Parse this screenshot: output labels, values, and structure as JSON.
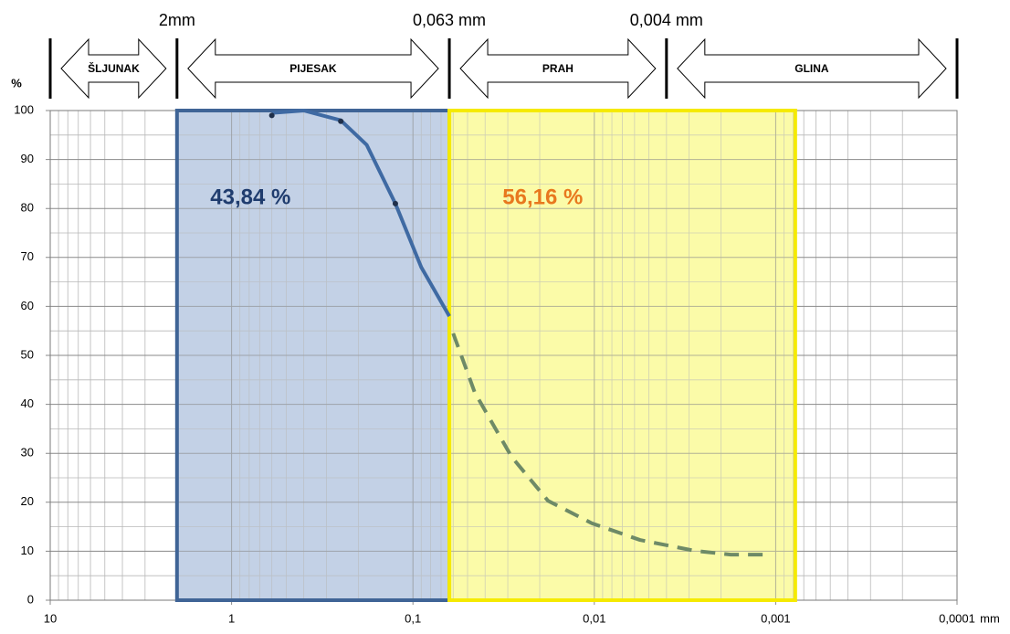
{
  "chart_data": {
    "type": "line",
    "xscale": "log",
    "xlim": [
      10,
      0.0001
    ],
    "ylim": [
      0,
      100
    ],
    "xticks": [
      10,
      1,
      {
        "value": 0.1,
        "label": "0,1"
      },
      {
        "value": 0.01,
        "label": "0,01"
      },
      {
        "value": 0.001,
        "label": "0,001"
      },
      {
        "value": 0.0001,
        "label": "0,0001"
      }
    ],
    "xminorticks": [
      9,
      8,
      7,
      6,
      5,
      4,
      3,
      2,
      0.9,
      0.8,
      0.7,
      0.6,
      0.5,
      0.4,
      0.3,
      0.2,
      0.09,
      0.08,
      0.07,
      0.06,
      0.05,
      0.04,
      0.03,
      0.02,
      0.009,
      0.008,
      0.007,
      0.006,
      0.005,
      0.004,
      0.003,
      0.002,
      0.0009,
      0.0008,
      0.0007,
      0.0006,
      0.0005,
      0.0004,
      0.0003,
      0.0002
    ],
    "yticks": [
      0,
      10,
      20,
      30,
      40,
      50,
      60,
      70,
      80,
      90,
      100
    ],
    "yminorticks": [
      5,
      15,
      25,
      35,
      45,
      55,
      65,
      75,
      85,
      95
    ],
    "xlabel": "mm",
    "ylabel": "%",
    "grid": true,
    "zones": [
      {
        "label": "ŠLJUNAK",
        "from": 10,
        "to": 2
      },
      {
        "label": "PIJESAK",
        "from": 2,
        "to": 0.063
      },
      {
        "label": "PRAH",
        "from": 0.063,
        "to": 0.004
      },
      {
        "label": "GLINA",
        "from": 0.004,
        "to": 0.0001
      }
    ],
    "boundary_labels": [
      {
        "value": 2,
        "label": "2mm"
      },
      {
        "value": 0.063,
        "label": "0,063 mm"
      },
      {
        "value": 0.004,
        "label": "0,004 mm"
      }
    ],
    "regions": [
      {
        "label": "43,84 %",
        "from": 2,
        "to": 0.063,
        "color": "#3f6496",
        "fill": "#c3d2e6",
        "label_color": "#1f3c6e"
      },
      {
        "label": "56,16 %",
        "from": 0.063,
        "to": 0.00078,
        "color": "#f5ea00",
        "fill": "#fbfba8",
        "label_color": "#e8781e"
      }
    ],
    "series": [
      {
        "color": "#3f6aa3",
        "style": "solid",
        "x": [
          0.6,
          0.4,
          0.25,
          0.18,
          0.125,
          0.09,
          0.063
        ],
        "values": [
          99.5,
          100,
          98,
          93,
          81,
          68,
          58
        ]
      },
      {
        "color": "#6e8a67",
        "style": "dashed",
        "x": [
          0.06,
          0.0456,
          0.0286,
          0.018,
          0.0103,
          0.0056,
          0.0028,
          0.00177,
          0.00118
        ],
        "values": [
          54.5,
          42.4,
          29.3,
          20.3,
          15.7,
          12.3,
          10.1,
          9.3,
          9.3
        ]
      }
    ],
    "points": {
      "color": "#1f2f4a",
      "x": [
        0.6,
        0.25,
        0.125
      ],
      "values": [
        99,
        97.8,
        81
      ]
    }
  }
}
